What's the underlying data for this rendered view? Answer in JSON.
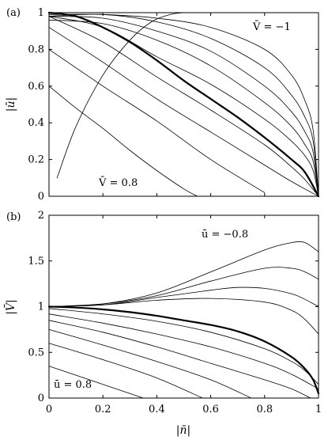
{
  "chart_data": [
    {
      "panel": "(a)",
      "type": "line",
      "xlabel": "|n̄|",
      "ylabel": "|ū|",
      "xlim": [
        0,
        1
      ],
      "ylim": [
        0,
        1
      ],
      "xticks": [],
      "yticks": [
        "0",
        "0.2",
        "0.4",
        "0.6",
        "0.8",
        "1"
      ],
      "annotations": [
        "V̄ = −1",
        "V̄ = 0.8"
      ],
      "series": [
        {
          "param": -1.0,
          "x": [
            0,
            0.2,
            0.4,
            0.6,
            0.8,
            0.9,
            0.95,
            0.98,
            1.0
          ],
          "y": [
            0.99,
            0.99,
            0.97,
            0.92,
            0.8,
            0.66,
            0.52,
            0.36,
            0.0
          ]
        },
        {
          "param": -0.8,
          "x": [
            0,
            0.2,
            0.4,
            0.6,
            0.8,
            0.9,
            0.95,
            0.98,
            1.0
          ],
          "y": [
            0.98,
            0.99,
            0.95,
            0.86,
            0.7,
            0.55,
            0.43,
            0.3,
            0.0
          ]
        },
        {
          "param": -0.6,
          "x": [
            0,
            0.2,
            0.4,
            0.6,
            0.8,
            0.9,
            0.95,
            0.98,
            1.0
          ],
          "y": [
            0.98,
            0.97,
            0.9,
            0.79,
            0.6,
            0.46,
            0.35,
            0.24,
            0.0
          ]
        },
        {
          "param": -0.4,
          "x": [
            0,
            0.2,
            0.4,
            0.6,
            0.8,
            0.9,
            0.95,
            0.98,
            1.0
          ],
          "y": [
            0.96,
            0.94,
            0.85,
            0.71,
            0.51,
            0.38,
            0.28,
            0.19,
            0.0
          ]
        },
        {
          "param": -0.2,
          "x": [
            0,
            0.2,
            0.4,
            0.6,
            0.8,
            0.9,
            0.95,
            0.98,
            1.0
          ],
          "y": [
            0.98,
            0.92,
            0.76,
            0.61,
            0.42,
            0.3,
            0.22,
            0.14,
            0.0
          ]
        },
        {
          "param": 0.0,
          "bold": true,
          "x": [
            0,
            0.1,
            0.2,
            0.3,
            0.4,
            0.5,
            0.6,
            0.7,
            0.8,
            0.9,
            0.95,
            1.0
          ],
          "y": [
            1.0,
            0.98,
            0.92,
            0.84,
            0.74,
            0.63,
            0.53,
            0.43,
            0.32,
            0.2,
            0.13,
            0.0
          ]
        },
        {
          "param": 0.2,
          "x": [
            0,
            0.2,
            0.4,
            0.6,
            0.8,
            0.9,
            0.95,
            1.0
          ],
          "y": [
            0.98,
            0.84,
            0.65,
            0.47,
            0.28,
            0.16,
            0.09,
            0.0
          ]
        },
        {
          "param": 0.4,
          "x": [
            0,
            0.2,
            0.4,
            0.6,
            0.8,
            0.9,
            1.0
          ],
          "y": [
            0.92,
            0.73,
            0.53,
            0.35,
            0.17,
            0.08,
            0.0
          ]
        },
        {
          "param": 0.6,
          "x": [
            0,
            0.2,
            0.4,
            0.6,
            0.8
          ],
          "y": [
            0.8,
            0.6,
            0.41,
            0.2,
            0.02
          ]
        },
        {
          "param": 0.8,
          "x": [
            0,
            0.1,
            0.2,
            0.3,
            0.4,
            0.5,
            0.55
          ],
          "y": [
            0.6,
            0.48,
            0.37,
            0.25,
            0.14,
            0.04,
            0.0
          ]
        },
        {
          "param": 0.8,
          "x": [
            0.03,
            0.1,
            0.2,
            0.3,
            0.38,
            0.45,
            0.5
          ],
          "y": [
            0.1,
            0.38,
            0.66,
            0.85,
            0.95,
            0.99,
            1.0
          ]
        }
      ]
    },
    {
      "panel": "(b)",
      "type": "line",
      "xlabel": "|n̄|",
      "ylabel": "|V̄|",
      "xlim": [
        0,
        1
      ],
      "ylim": [
        0,
        2
      ],
      "xticks": [
        "0",
        "0.2",
        "0.4",
        "0.6",
        "0.8",
        "1"
      ],
      "yticks": [
        "0",
        "0.5",
        "1",
        "1.5",
        "2"
      ],
      "annotations": [
        "ū = −0.8",
        "ū = 0.8"
      ],
      "series": [
        {
          "param": -0.8,
          "x": [
            0,
            0.2,
            0.4,
            0.6,
            0.8,
            0.9,
            0.95,
            1.0
          ],
          "y": [
            1.0,
            1.03,
            1.15,
            1.38,
            1.62,
            1.7,
            1.7,
            1.6
          ]
        },
        {
          "param": -0.6,
          "x": [
            0,
            0.2,
            0.4,
            0.6,
            0.8,
            0.9,
            0.95,
            1.0
          ],
          "y": [
            1.0,
            1.03,
            1.12,
            1.28,
            1.42,
            1.42,
            1.38,
            1.3
          ]
        },
        {
          "param": -0.4,
          "x": [
            0,
            0.2,
            0.4,
            0.6,
            0.7,
            0.8,
            0.9,
            0.95,
            1.0
          ],
          "y": [
            1.0,
            1.02,
            1.1,
            1.18,
            1.21,
            1.2,
            1.14,
            1.08,
            1.0
          ]
        },
        {
          "param": -0.2,
          "x": [
            0,
            0.2,
            0.4,
            0.6,
            0.8,
            0.9,
            0.95,
            1.0
          ],
          "y": [
            1.0,
            1.02,
            1.07,
            1.09,
            1.05,
            0.96,
            0.86,
            0.7
          ]
        },
        {
          "param": 0.0,
          "bold": true,
          "x": [
            0,
            0.1,
            0.2,
            0.3,
            0.4,
            0.5,
            0.6,
            0.7,
            0.8,
            0.9,
            0.95,
            0.98,
            1.0
          ],
          "y": [
            1.0,
            0.99,
            0.97,
            0.94,
            0.9,
            0.85,
            0.8,
            0.73,
            0.62,
            0.45,
            0.32,
            0.2,
            0.05
          ]
        },
        {
          "param": 0.2,
          "x": [
            0,
            0.2,
            0.4,
            0.6,
            0.8,
            0.9,
            0.95,
            1.0
          ],
          "y": [
            0.98,
            0.92,
            0.84,
            0.72,
            0.54,
            0.4,
            0.3,
            0.15
          ]
        },
        {
          "param": 0.3,
          "x": [
            0,
            0.2,
            0.4,
            0.6,
            0.8,
            0.9,
            1.0
          ],
          "y": [
            0.92,
            0.82,
            0.7,
            0.56,
            0.38,
            0.26,
            0.1
          ]
        },
        {
          "param": 0.4,
          "x": [
            0,
            0.2,
            0.4,
            0.6,
            0.8,
            0.9,
            0.97
          ],
          "y": [
            0.85,
            0.72,
            0.56,
            0.38,
            0.2,
            0.1,
            0.0
          ]
        },
        {
          "param": 0.5,
          "x": [
            0,
            0.2,
            0.4,
            0.6,
            0.75
          ],
          "y": [
            0.75,
            0.58,
            0.4,
            0.2,
            0.0
          ]
        },
        {
          "param": 0.6,
          "x": [
            0,
            0.2,
            0.4,
            0.57
          ],
          "y": [
            0.6,
            0.42,
            0.22,
            0.0
          ]
        },
        {
          "param": 0.8,
          "x": [
            0,
            0.2,
            0.35
          ],
          "y": [
            0.35,
            0.15,
            0.0
          ]
        }
      ]
    }
  ]
}
